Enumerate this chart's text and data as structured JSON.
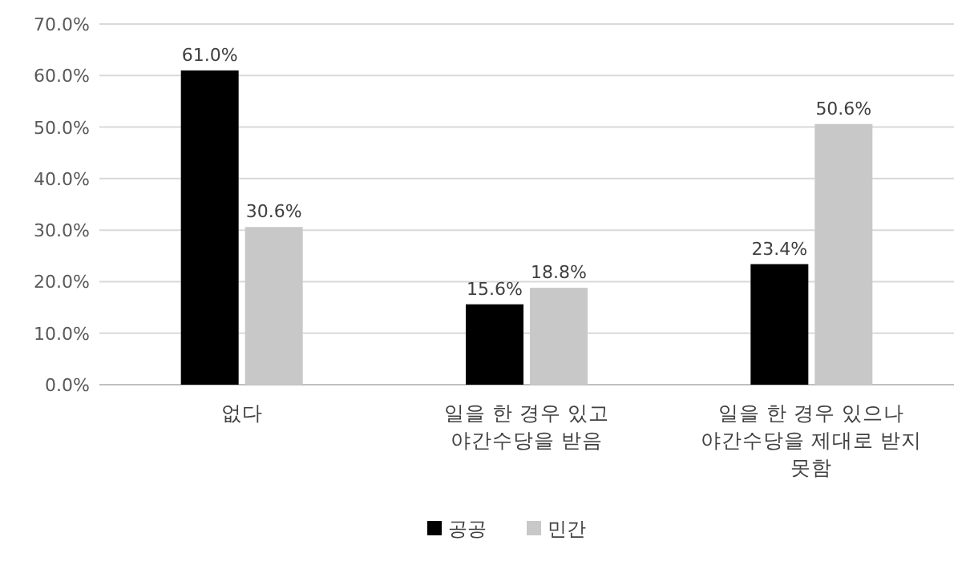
{
  "chart_data": {
    "type": "bar",
    "categories": [
      "없다",
      "일을 한 경우 있고\n야간수당을 받음",
      "일을 한 경우 있으나\n야간수당을 제대로 받지\n못함"
    ],
    "series": [
      {
        "name": "공공",
        "color": "#000000",
        "values": [
          61.0,
          15.6,
          23.4
        ],
        "value_labels": [
          "61.0%",
          "15.6%",
          "23.4%"
        ]
      },
      {
        "name": "민간",
        "color": "#c8c8c8",
        "values": [
          30.6,
          18.8,
          50.6
        ],
        "value_labels": [
          "30.6%",
          "18.8%",
          "50.6%"
        ]
      }
    ],
    "ylim": [
      0,
      70
    ],
    "yticks": [
      {
        "value": 0,
        "label": "0.0%"
      },
      {
        "value": 10,
        "label": "10.0%"
      },
      {
        "value": 20,
        "label": "20.0%"
      },
      {
        "value": 30,
        "label": "30.0%"
      },
      {
        "value": 40,
        "label": "40.0%"
      },
      {
        "value": 50,
        "label": "50.0%"
      },
      {
        "value": 60,
        "label": "60.0%"
      },
      {
        "value": 70,
        "label": "70.0%"
      }
    ],
    "grid": "y",
    "legend": "bottom"
  }
}
